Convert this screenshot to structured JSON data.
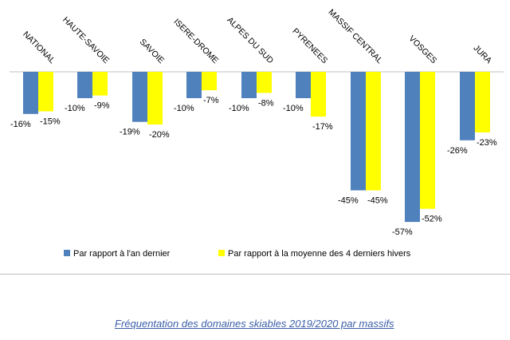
{
  "chart_data": {
    "type": "bar",
    "categories": [
      "NATIONAL",
      "HAUTE-SAVOIE",
      "SAVOIE",
      "ISERE-DROME",
      "ALPES DU SUD",
      "PYRENEES",
      "MASSIF CENTRAL",
      "VOSGES",
      "JURA"
    ],
    "series": [
      {
        "name": "Par rapport à l'an dernier",
        "color": "#4f81bd",
        "values": [
          -16,
          -10,
          -19,
          -10,
          -10,
          -10,
          -45,
          -57,
          -26
        ]
      },
      {
        "name": "Par rapport à la moyenne des 4 derniers hivers",
        "color": "#ffff00",
        "values": [
          -15,
          -9,
          -20,
          -7,
          -8,
          -17,
          -45,
          -52,
          -23
        ]
      }
    ],
    "ylim": [
      -60,
      0
    ],
    "legend_position": "bottom",
    "grid": false
  },
  "caption": "Fréquentation des domaines skiables 2019/2020 par massifs"
}
